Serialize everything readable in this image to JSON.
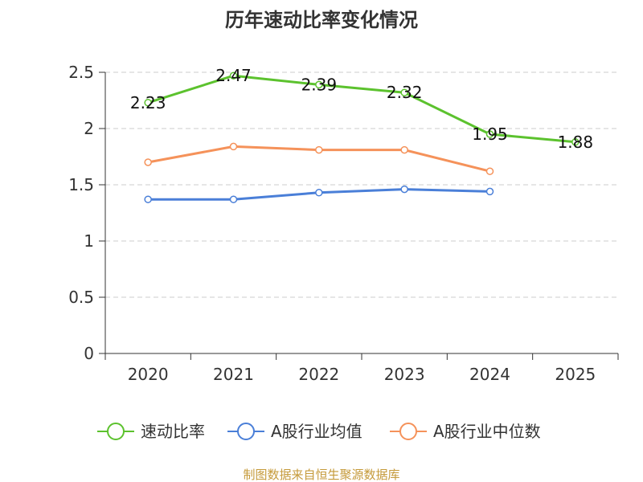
{
  "chart_data": {
    "type": "line",
    "title": "历年速动比率变化情况",
    "xlabel": "",
    "ylabel": "",
    "categories": [
      "2020",
      "2021",
      "2022",
      "2023",
      "2024",
      "2025"
    ],
    "ylim": [
      0,
      2.5
    ],
    "yticks": [
      0,
      0.5,
      1,
      1.5,
      2,
      2.5
    ],
    "ytick_labels": [
      "0",
      "0.5",
      "1",
      "1.5",
      "2",
      "2.5"
    ],
    "grid": true,
    "legend_position": "bottom",
    "series": [
      {
        "name": "速动比率",
        "color": "#5cc22e",
        "values": [
          2.23,
          2.47,
          2.39,
          2.32,
          1.95,
          1.88
        ],
        "labels": [
          "2.23",
          "2.47",
          "2.39",
          "2.32",
          "1.95",
          "1.88"
        ],
        "show_labels": true
      },
      {
        "name": "A股行业均值",
        "color": "#4a7fd8",
        "values": [
          1.37,
          1.37,
          1.43,
          1.46,
          1.44,
          null
        ],
        "show_labels": false
      },
      {
        "name": "A股行业中位数",
        "color": "#f5925a",
        "values": [
          1.7,
          1.84,
          1.81,
          1.81,
          1.62,
          null
        ],
        "show_labels": false
      }
    ],
    "source": "制图数据来自恒生聚源数据库"
  }
}
